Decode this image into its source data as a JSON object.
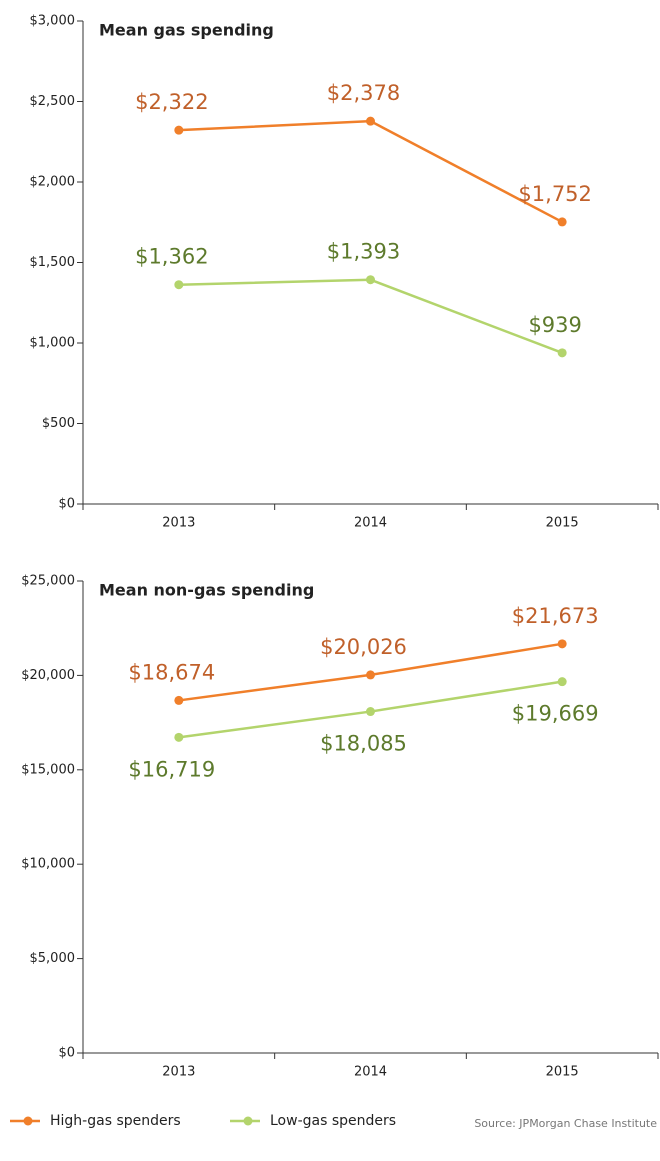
{
  "chart_data": [
    {
      "type": "line",
      "title": "Mean gas spending",
      "categories": [
        "2013",
        "2014",
        "2015"
      ],
      "series": [
        {
          "name": "High-gas spenders",
          "color": "#f07f2a",
          "values": [
            2322,
            2378,
            1752
          ],
          "value_labels": [
            "$2,322",
            "$2,378",
            "$1,752"
          ]
        },
        {
          "name": "Low-gas spenders",
          "color": "#b3d46c",
          "values": [
            1362,
            1393,
            939
          ],
          "value_labels": [
            "$1,362",
            "$1,393",
            "$939"
          ]
        }
      ],
      "ylim": [
        0,
        3000
      ],
      "yticks": [
        {
          "value": 0,
          "label": "$0"
        },
        {
          "value": 500,
          "label": "$500"
        },
        {
          "value": 1000,
          "label": "$1,000"
        },
        {
          "value": 1500,
          "label": "$1,500"
        },
        {
          "value": 2000,
          "label": "$2,000"
        },
        {
          "value": 2500,
          "label": "$2,500"
        },
        {
          "value": 3000,
          "label": "$3,000"
        }
      ]
    },
    {
      "type": "line",
      "title": "Mean non-gas spending",
      "categories": [
        "2013",
        "2014",
        "2015"
      ],
      "series": [
        {
          "color": "#f07f2a",
          "values": [
            18674,
            20026,
            21673
          ],
          "value_labels": [
            "$18,674",
            "$20,026",
            "$21,673"
          ]
        },
        {
          "color": "#b3d46c",
          "values": [
            16719,
            18085,
            19669
          ],
          "value_labels": [
            "$16,719",
            "$18,085",
            "$19,669"
          ]
        }
      ],
      "ylim": [
        0,
        25000
      ],
      "yticks": [
        {
          "value": 0,
          "label": "$0"
        },
        {
          "value": 5000,
          "label": "$5,000"
        },
        {
          "value": 10000,
          "label": "$10,000"
        },
        {
          "value": 15000,
          "label": "$15,000"
        },
        {
          "value": 20000,
          "label": "$20,000"
        },
        {
          "value": 25000,
          "label": "$25,000"
        }
      ]
    }
  ],
  "source": "Source:  JPMorgan Chase Institute"
}
